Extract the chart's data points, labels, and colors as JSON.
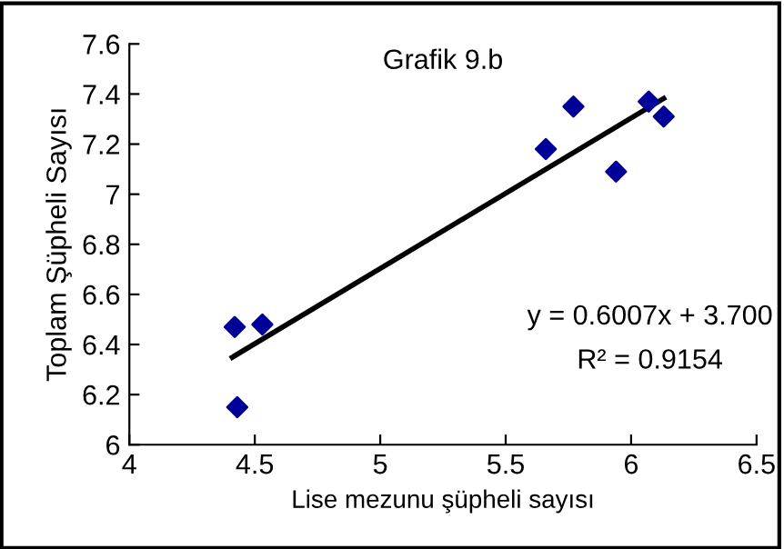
{
  "chart_data": {
    "type": "scatter",
    "title": "Grafik 9.b",
    "xlabel": "Lise mezunu şüpheli sayısı",
    "ylabel": "Toplam Şüpheli Sayısı",
    "x": [
      4.42,
      4.53,
      4.43,
      5.66,
      5.77,
      5.94,
      6.07,
      6.13
    ],
    "series": [
      {
        "color": "#000099",
        "values": [
          6.47,
          6.48,
          6.15,
          7.18,
          7.35,
          7.09,
          7.37,
          7.31
        ],
        "marker": "diamond"
      },
      {
        "type": "line",
        "color": "#000000",
        "x": [
          4.41,
          6.13
        ],
        "values": [
          6.349,
          7.382
        ],
        "marker": "none"
      }
    ],
    "annotations": [
      "y = 0.6007x + 3.700",
      "R² = 0.9154"
    ],
    "xlim": [
      4,
      6.5
    ],
    "xticks": [
      4,
      4.5,
      5,
      5.5,
      6,
      6.5
    ],
    "ylim": [
      6,
      7.6
    ],
    "yticks": [
      6,
      6.2,
      6.4,
      6.6,
      6.8,
      7,
      7.2,
      7.4,
      7.6
    ],
    "grid": false,
    "legend": false
  }
}
